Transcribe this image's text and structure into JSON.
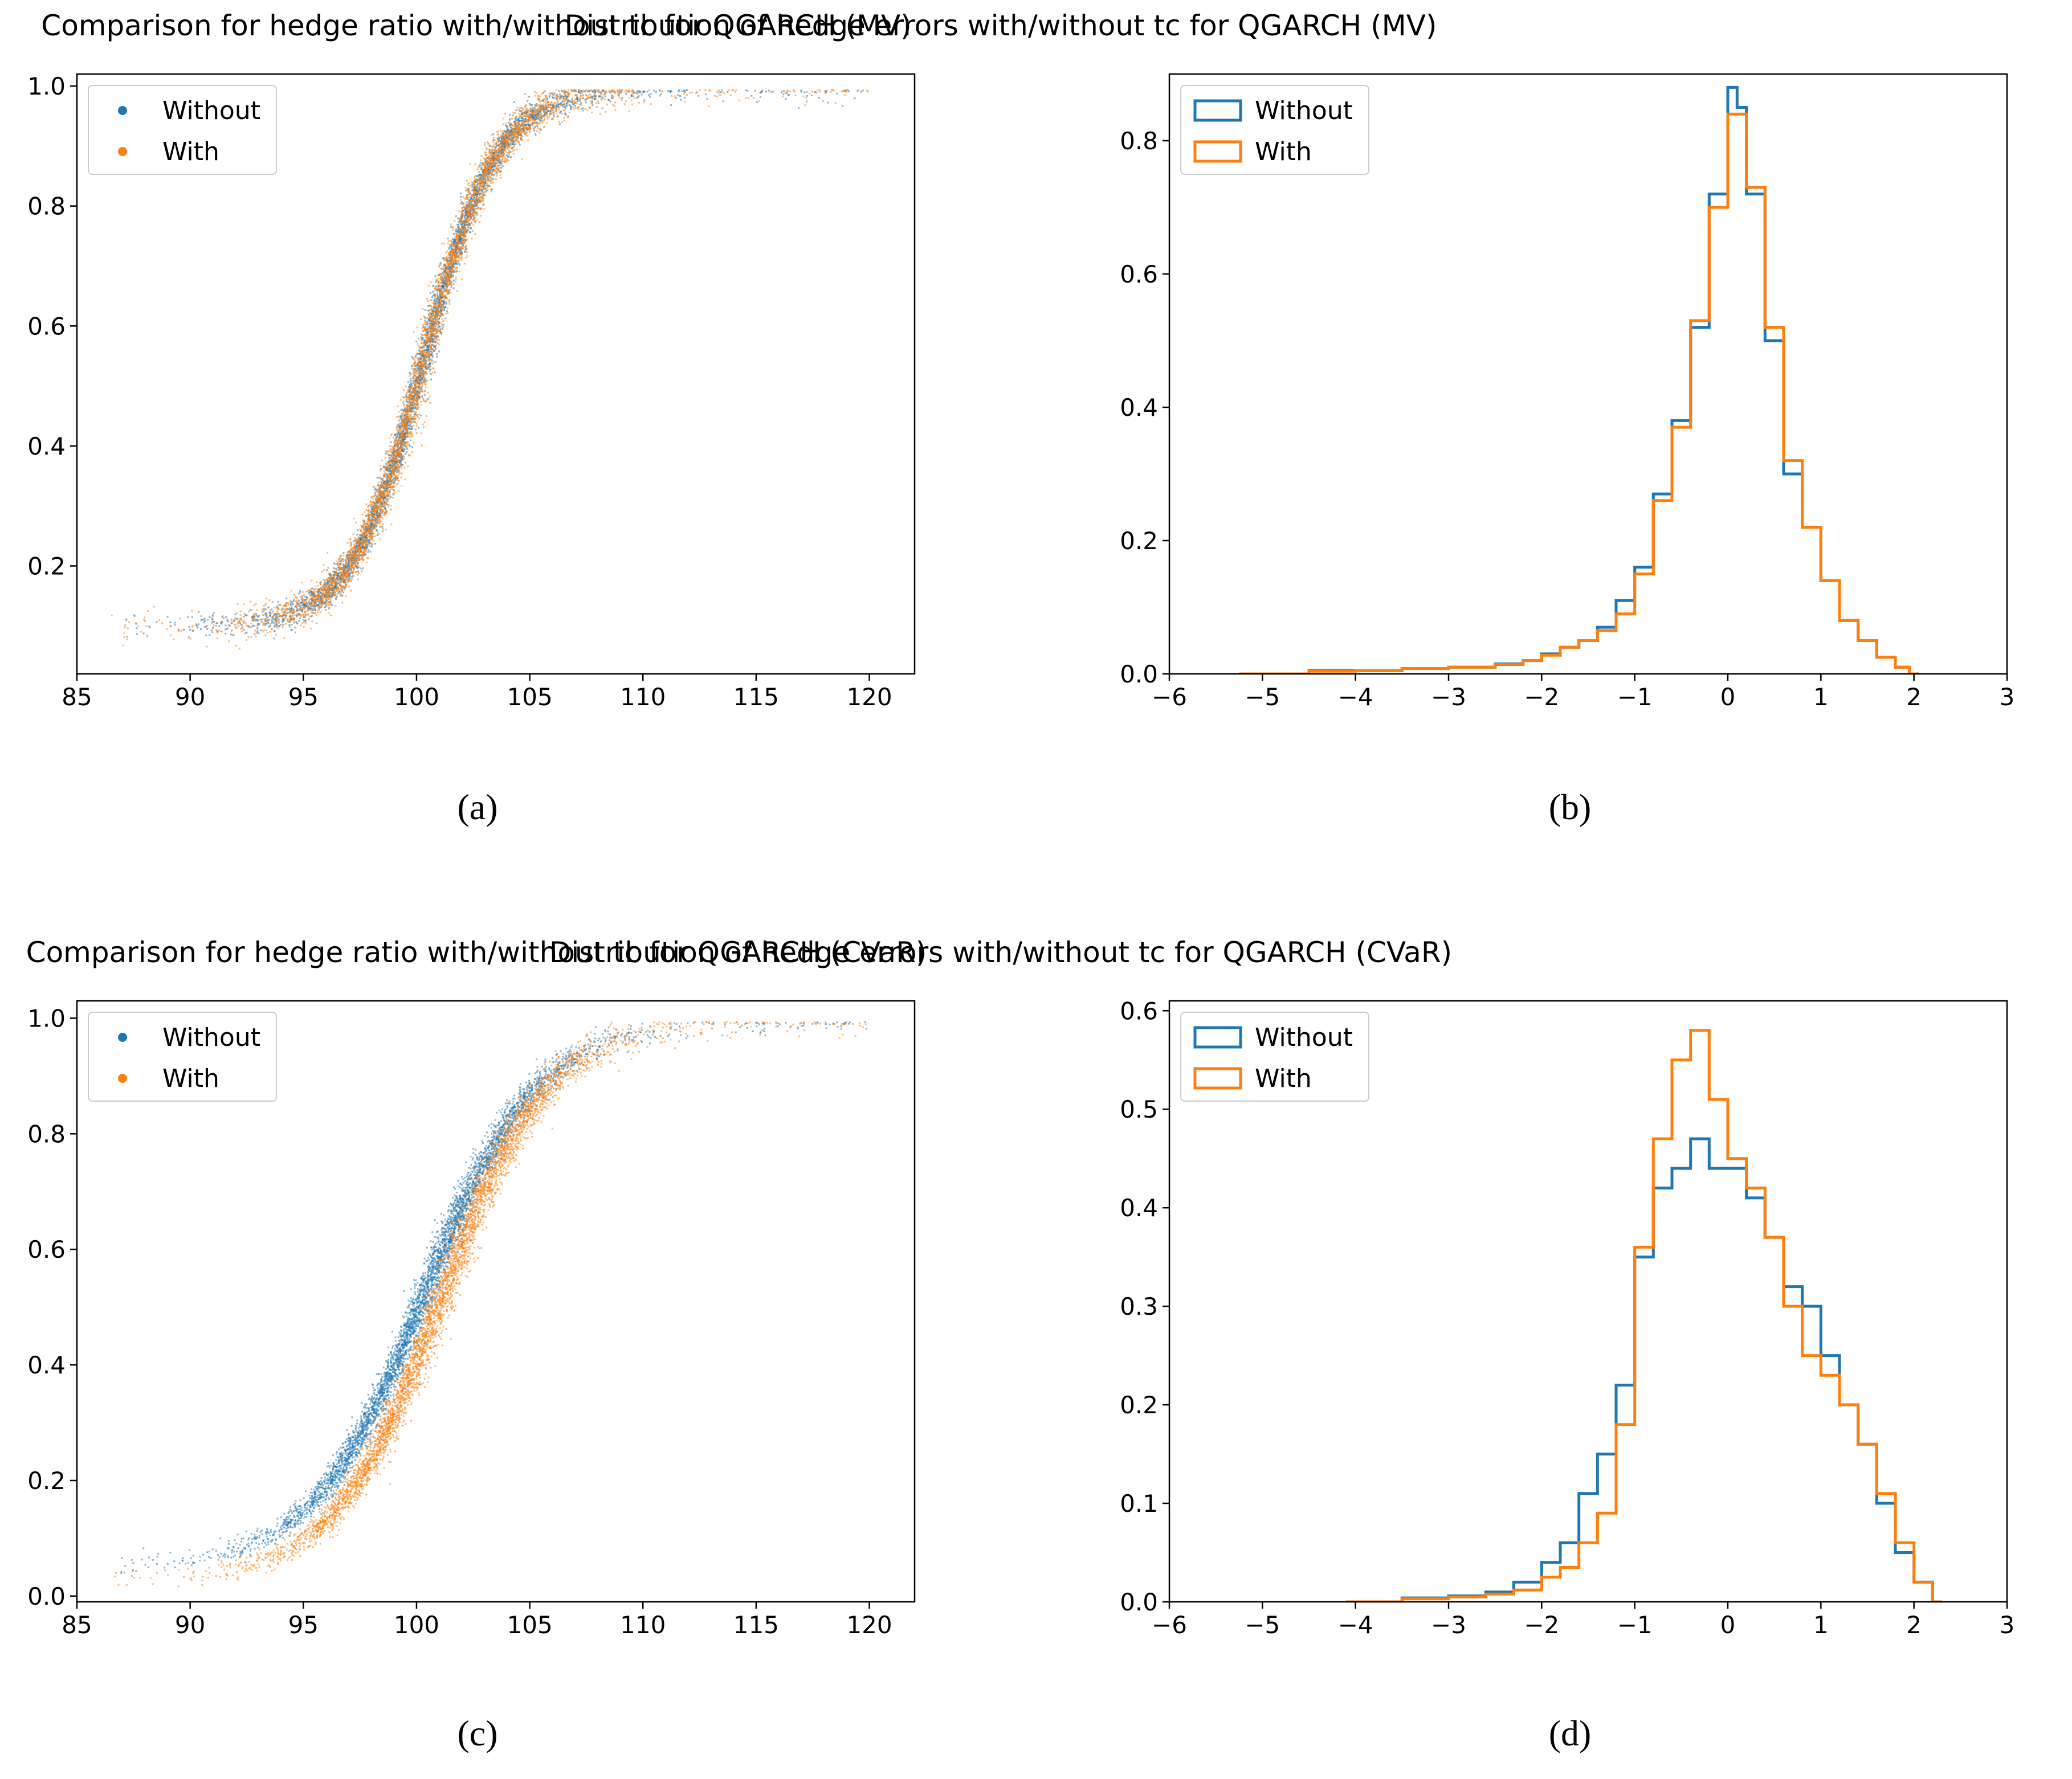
{
  "colors": {
    "without": "#1f77b4",
    "with": "#ff7f0e",
    "frame": "#000000"
  },
  "panels": [
    {
      "id": "a",
      "label": "(a)",
      "chart_data": {
        "type": "scatter",
        "title": "Comparison for hedge ratio with/without tc for QGARCH (MV)",
        "xlabel": "",
        "ylabel": "",
        "xlim": [
          85,
          122
        ],
        "ylim": [
          0.02,
          1.02
        ],
        "xticks": [
          85,
          90,
          95,
          100,
          105,
          110,
          115,
          120
        ],
        "yticks": [
          0.2,
          0.4,
          0.6,
          0.8,
          1.0
        ],
        "xtick_labels": [
          "85",
          "90",
          "95",
          "100",
          "105",
          "110",
          "115",
          "120"
        ],
        "ytick_labels": [
          "0.2",
          "0.4",
          "0.6",
          "0.8",
          "1.0"
        ],
        "legend": {
          "position": "top-left",
          "entries": [
            "Without",
            "With"
          ]
        },
        "series": [
          {
            "name": "Without",
            "curve": {
              "center": 100.3,
              "scale": 2.6,
              "low": 0.1,
              "high": 0.995,
              "x_range": [
                87,
                120
              ]
            }
          },
          {
            "name": "With",
            "curve": {
              "center": 100.3,
              "scale": 2.6,
              "low": 0.1,
              "high": 0.995,
              "x_range": [
                86.5,
                120
              ]
            }
          }
        ]
      }
    },
    {
      "id": "b",
      "label": "(b)",
      "chart_data": {
        "type": "histogram",
        "title": "Distribution of hedge errors with/without tc for QGARCH (MV)",
        "xlabel": "",
        "ylabel": "",
        "xlim": [
          -6,
          3
        ],
        "ylim": [
          0,
          0.9
        ],
        "xticks": [
          -6,
          -5,
          -4,
          -3,
          -2,
          -1,
          0,
          1,
          2,
          3
        ],
        "yticks": [
          0.0,
          0.2,
          0.4,
          0.6,
          0.8
        ],
        "xtick_labels": [
          "−6",
          "−5",
          "−4",
          "−3",
          "−2",
          "−1",
          "0",
          "1",
          "2",
          "3"
        ],
        "ytick_labels": [
          "0.0",
          "0.2",
          "0.4",
          "0.6",
          "0.8"
        ],
        "legend": {
          "position": "top-left",
          "entries": [
            "Without",
            "With"
          ]
        },
        "series": [
          {
            "name": "Without",
            "x": [
              -5.25,
              -4.5,
              -4.0,
              -3.5,
              -3.0,
              -2.5,
              -2.2,
              -2.0,
              -1.8,
              -1.6,
              -1.4,
              -1.2,
              -1.0,
              -0.8,
              -0.6,
              -0.4,
              -0.2,
              0.0,
              0.1,
              0.2,
              0.4,
              0.6,
              0.8,
              1.0,
              1.2,
              1.4,
              1.6,
              1.8,
              1.95
            ],
            "y": [
              0.0,
              0.005,
              0.005,
              0.008,
              0.01,
              0.015,
              0.02,
              0.03,
              0.04,
              0.05,
              0.07,
              0.11,
              0.16,
              0.27,
              0.38,
              0.52,
              0.72,
              0.88,
              0.85,
              0.72,
              0.5,
              0.3,
              0.22,
              0.14,
              0.08,
              0.05,
              0.025,
              0.01,
              0.0
            ]
          },
          {
            "name": "With",
            "x": [
              -5.25,
              -4.5,
              -4.0,
              -3.5,
              -3.0,
              -2.5,
              -2.2,
              -2.0,
              -1.8,
              -1.6,
              -1.4,
              -1.2,
              -1.0,
              -0.8,
              -0.6,
              -0.4,
              -0.2,
              0.0,
              0.1,
              0.2,
              0.4,
              0.6,
              0.8,
              1.0,
              1.2,
              1.4,
              1.6,
              1.8,
              1.95
            ],
            "y": [
              0.0,
              0.004,
              0.005,
              0.008,
              0.01,
              0.014,
              0.02,
              0.028,
              0.04,
              0.05,
              0.065,
              0.09,
              0.15,
              0.26,
              0.37,
              0.53,
              0.7,
              0.84,
              0.84,
              0.73,
              0.52,
              0.32,
              0.22,
              0.14,
              0.08,
              0.05,
              0.025,
              0.01,
              0.0
            ]
          }
        ]
      }
    },
    {
      "id": "c",
      "label": "(c)",
      "chart_data": {
        "type": "scatter",
        "title": "Comparison for hedge ratio with/without tc for QGARCH (CVaR)",
        "xlabel": "",
        "ylabel": "",
        "xlim": [
          85,
          122
        ],
        "ylim": [
          -0.01,
          1.03
        ],
        "xticks": [
          85,
          90,
          95,
          100,
          105,
          110,
          115,
          120
        ],
        "yticks": [
          0.0,
          0.2,
          0.4,
          0.6,
          0.8,
          1.0
        ],
        "xtick_labels": [
          "85",
          "90",
          "95",
          "100",
          "105",
          "110",
          "115",
          "120"
        ],
        "ytick_labels": [
          "0.0",
          "0.2",
          "0.4",
          "0.6",
          "0.8",
          "1.0"
        ],
        "legend": {
          "position": "top-left",
          "entries": [
            "Without",
            "With"
          ]
        },
        "series": [
          {
            "name": "Without",
            "curve": {
              "center": 100.3,
              "scale": 4.0,
              "low": 0.05,
              "high": 0.995,
              "x_range": [
                86.5,
                120
              ]
            }
          },
          {
            "name": "With",
            "curve": {
              "center": 101.0,
              "scale": 3.8,
              "low": 0.03,
              "high": 0.995,
              "x_range": [
                86.5,
                120
              ]
            }
          }
        ]
      }
    },
    {
      "id": "d",
      "label": "(d)",
      "chart_data": {
        "type": "histogram",
        "title": "Distribution of hedge errors with/without tc for QGARCH (CVaR)",
        "xlabel": "",
        "ylabel": "",
        "xlim": [
          -6,
          3
        ],
        "ylim": [
          0,
          0.61
        ],
        "xticks": [
          -6,
          -5,
          -4,
          -3,
          -2,
          -1,
          0,
          1,
          2,
          3
        ],
        "yticks": [
          0.0,
          0.1,
          0.2,
          0.3,
          0.4,
          0.5,
          0.6
        ],
        "xtick_labels": [
          "−6",
          "−5",
          "−4",
          "−3",
          "−2",
          "−1",
          "0",
          "1",
          "2",
          "3"
        ],
        "ytick_labels": [
          "0.0",
          "0.1",
          "0.2",
          "0.3",
          "0.4",
          "0.5",
          "0.6"
        ],
        "legend": {
          "position": "top-left",
          "entries": [
            "Without",
            "With"
          ]
        },
        "series": [
          {
            "name": "Without",
            "x": [
              -4.1,
              -3.5,
              -3.0,
              -2.6,
              -2.3,
              -2.0,
              -1.8,
              -1.6,
              -1.4,
              -1.2,
              -1.0,
              -0.8,
              -0.6,
              -0.4,
              -0.2,
              0.0,
              0.2,
              0.4,
              0.6,
              0.8,
              1.0,
              1.2,
              1.4,
              1.6,
              1.8,
              2.0,
              2.2
            ],
            "y": [
              0.0,
              0.004,
              0.006,
              0.01,
              0.02,
              0.04,
              0.06,
              0.11,
              0.15,
              0.22,
              0.35,
              0.42,
              0.44,
              0.47,
              0.44,
              0.44,
              0.41,
              0.37,
              0.32,
              0.3,
              0.25,
              0.2,
              0.16,
              0.1,
              0.05,
              0.02,
              0.0
            ]
          },
          {
            "name": "With",
            "x": [
              -4.1,
              -3.5,
              -3.0,
              -2.6,
              -2.3,
              -2.0,
              -1.8,
              -1.6,
              -1.4,
              -1.2,
              -1.0,
              -0.8,
              -0.6,
              -0.4,
              -0.2,
              0.0,
              0.2,
              0.4,
              0.6,
              0.8,
              1.0,
              1.2,
              1.4,
              1.6,
              1.8,
              2.0,
              2.2
            ],
            "y": [
              0.0,
              0.003,
              0.005,
              0.008,
              0.012,
              0.025,
              0.035,
              0.06,
              0.09,
              0.18,
              0.36,
              0.47,
              0.55,
              0.58,
              0.51,
              0.45,
              0.42,
              0.37,
              0.3,
              0.25,
              0.23,
              0.2,
              0.16,
              0.11,
              0.06,
              0.02,
              0.0
            ]
          }
        ]
      }
    }
  ]
}
